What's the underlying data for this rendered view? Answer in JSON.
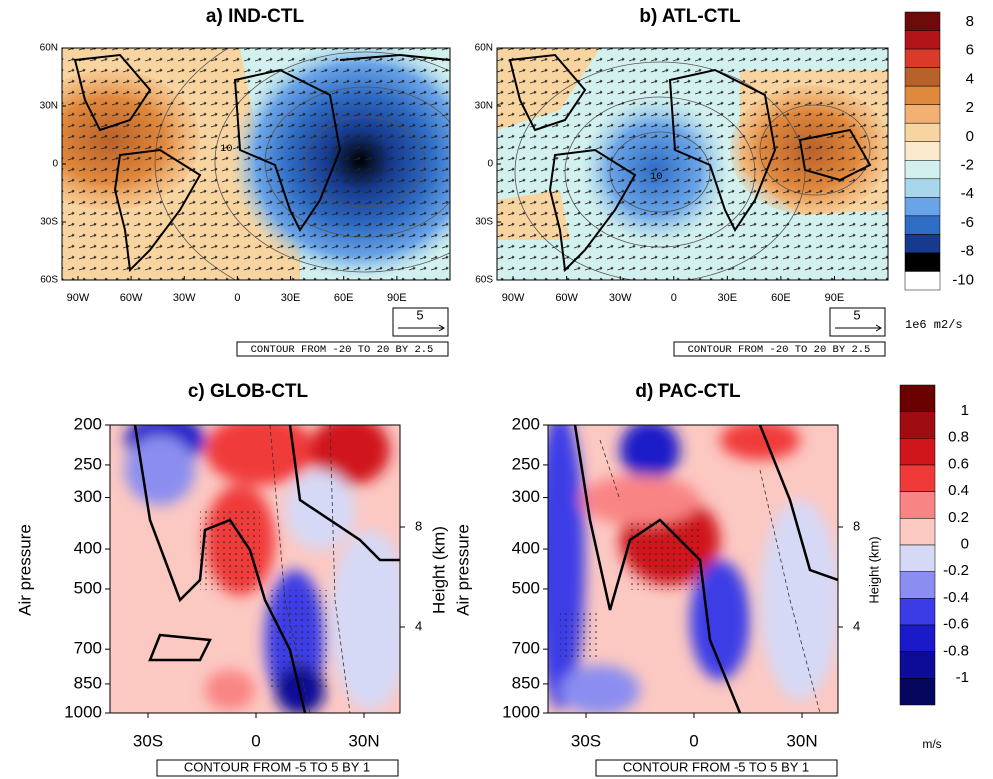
{
  "maps": {
    "panels": [
      {
        "title": "a)  IND-CTL",
        "contour_label": "10"
      },
      {
        "title": "b)  ATL-CTL",
        "contour_label": "10"
      }
    ],
    "xticks": [
      "90W",
      "60W",
      "30W",
      "0",
      "30E",
      "60E",
      "90E"
    ],
    "yticks": [
      "60N",
      "30N",
      "0",
      "30S",
      "60S"
    ],
    "vector_ref": "5",
    "contour_note": "CONTOUR FROM -20 TO 20 BY 2.5",
    "colorbar": {
      "labels": [
        8,
        6,
        4,
        2,
        0,
        -2,
        -4,
        -6,
        -8,
        -10
      ],
      "unit": "1e6 m2/s",
      "colors": [
        "#6e0a0a",
        "#b3141a",
        "#d93a2a",
        "#b8612a",
        "#e0883c",
        "#f2b072",
        "#f8d4a0",
        "#fbe9cc",
        "#d2f0ee",
        "#a8d6ea",
        "#6aa4e8",
        "#2f6cc4",
        "#163a8e",
        "#000000",
        "#ffffff"
      ]
    }
  },
  "sections": {
    "panels": [
      {
        "title": "c)  GLOB-CTL"
      },
      {
        "title": "d)  PAC-CTL"
      }
    ],
    "y_label": "Air pressure",
    "yticks": [
      200,
      250,
      300,
      400,
      500,
      700,
      850,
      1000
    ],
    "xticks": [
      "30S",
      "0",
      "30N"
    ],
    "y2_label": "Height (km)",
    "y2ticks": [
      8,
      4
    ],
    "contour_note": "CONTOUR FROM -5 TO 5 BY 1",
    "colorbar": {
      "labels": [
        1,
        0.8,
        0.6,
        0.4,
        0.2,
        0,
        -0.2,
        -0.4,
        -0.6,
        -0.8,
        -1
      ],
      "unit": "m/s",
      "colors": [
        "#6a0000",
        "#a00d10",
        "#d0161b",
        "#f03a3a",
        "#f98484",
        "#fcc8c2",
        "#d6d9f6",
        "#8b8ef0",
        "#3c3ce6",
        "#1a1ac8",
        "#0c0c98",
        "#06065e"
      ]
    }
  }
}
